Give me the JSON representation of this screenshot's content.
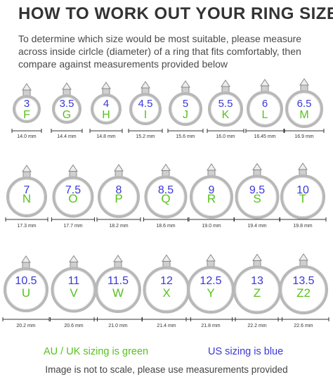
{
  "title": "HOW TO WORK OUT YOUR RING SIZE",
  "intro": "To determine which size would be most suitable, please measure across inside cirlcle (diameter) of a ring that fits comfortably, then compare against measurements provided below",
  "colors": {
    "us": "#3a37d8",
    "au": "#57c21c",
    "ring": "#b8b8b8",
    "text": "#333333"
  },
  "rows": [
    [
      {
        "us": "3",
        "au": "F",
        "mm": "14.0 mm"
      },
      {
        "us": "3.5",
        "au": "G",
        "mm": "14.4 mm"
      },
      {
        "us": "4",
        "au": "H",
        "mm": "14.8 mm"
      },
      {
        "us": "4.5",
        "au": "I",
        "mm": "15.2 mm"
      },
      {
        "us": "5",
        "au": "J",
        "mm": "15.6 mm"
      },
      {
        "us": "5.5",
        "au": "K",
        "mm": "16.0 mm"
      },
      {
        "us": "6",
        "au": "L",
        "mm": "16.45 mm"
      },
      {
        "us": "6.5",
        "au": "M",
        "mm": "16.9 mm"
      }
    ],
    [
      {
        "us": "7",
        "au": "N",
        "mm": "17.3 mm"
      },
      {
        "us": "7.5",
        "au": "O",
        "mm": "17.7 mm"
      },
      {
        "us": "8",
        "au": "P",
        "mm": "18.2 mm"
      },
      {
        "us": "8.5",
        "au": "Q",
        "mm": "18.6 mm"
      },
      {
        "us": "9",
        "au": "R",
        "mm": "19.0 mm"
      },
      {
        "us": "9.5",
        "au": "S",
        "mm": "19.4 mm"
      },
      {
        "us": "10",
        "au": "T",
        "mm": "19.8 mm"
      }
    ],
    [
      {
        "us": "10.5",
        "au": "U",
        "mm": "20.2 mm"
      },
      {
        "us": "11",
        "au": "V",
        "mm": "20.6 mm"
      },
      {
        "us": "11.5",
        "au": "W",
        "mm": "21.0 mm"
      },
      {
        "us": "12",
        "au": "X",
        "mm": "21.4 mm"
      },
      {
        "us": "12.5",
        "au": "Y",
        "mm": "21.8 mm"
      },
      {
        "us": "13",
        "au": "Z",
        "mm": "22.2 mm"
      },
      {
        "us": "13.5",
        "au": "Z2",
        "mm": "22.6 mm"
      }
    ]
  ],
  "legend": {
    "au": "AU / UK sizing is green",
    "us": "US sizing is blue"
  },
  "note": "Image is not to scale, please use measurements provided"
}
